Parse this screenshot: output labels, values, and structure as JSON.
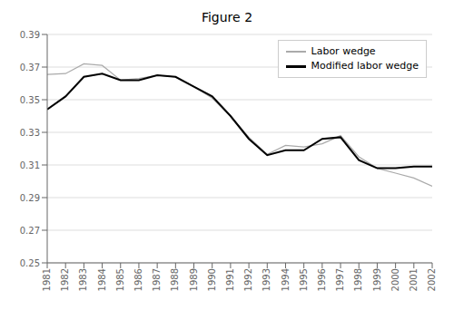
{
  "chart_data": {
    "type": "line",
    "title": "Figure 2",
    "x": [
      1981,
      1982,
      1983,
      1984,
      1985,
      1986,
      1987,
      1988,
      1989,
      1990,
      1991,
      1992,
      1993,
      1994,
      1995,
      1996,
      1997,
      1998,
      1999,
      2000,
      2001,
      2002
    ],
    "series": [
      {
        "name": "Labor wedge",
        "color": "#aaaaaa",
        "values": [
          0.3655,
          0.366,
          0.372,
          0.371,
          0.362,
          0.363,
          0.365,
          0.364,
          0.358,
          0.351,
          0.34,
          0.327,
          0.3165,
          0.322,
          0.321,
          0.323,
          0.328,
          0.315,
          0.308,
          0.305,
          0.302,
          0.297
        ]
      },
      {
        "name": "Modified labor wedge",
        "color": "#000000",
        "values": [
          0.344,
          0.352,
          0.364,
          0.366,
          0.362,
          0.362,
          0.365,
          0.364,
          0.358,
          0.352,
          0.34,
          0.326,
          0.316,
          0.319,
          0.319,
          0.326,
          0.327,
          0.313,
          0.308,
          0.308,
          0.309,
          0.309
        ]
      }
    ],
    "xlim": [
      1981,
      2002
    ],
    "xticks": [
      1981,
      1982,
      1983,
      1984,
      1985,
      1986,
      1987,
      1988,
      1989,
      1990,
      1991,
      1992,
      1993,
      1994,
      1995,
      1996,
      1997,
      1998,
      1999,
      2000,
      2001,
      2002
    ],
    "ylim": [
      0.25,
      0.39
    ],
    "yticks": [
      0.25,
      0.27,
      0.29,
      0.31,
      0.33,
      0.35,
      0.37,
      0.39
    ],
    "grid": true,
    "legend": "upper right"
  }
}
